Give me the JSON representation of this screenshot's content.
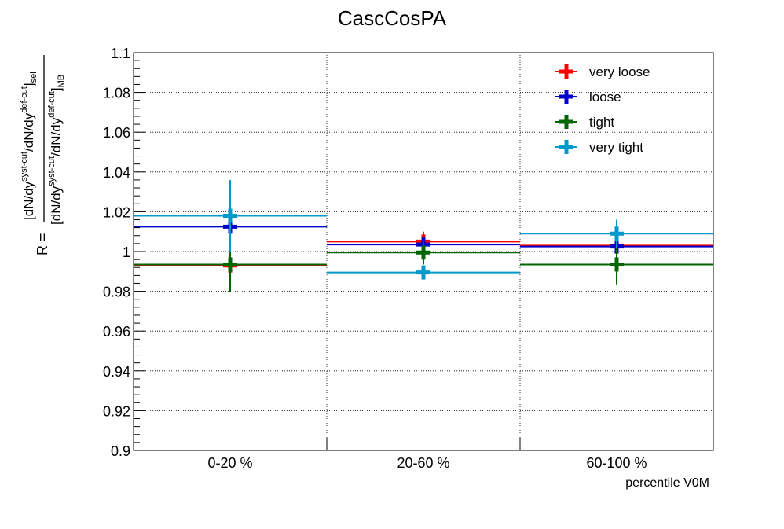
{
  "chart_data": {
    "type": "scatter",
    "title": "CascCosPA",
    "xlabel": "percentile V0M",
    "ylabel": "R = [dN/dy^{syst-cut}/dN/dy^{def-cut}]_{sel} / [dN/dy^{syst-cut}/dN/dy^{def-cut}]_{MB}",
    "ylabel_parts": {
      "r_eq": "R =",
      "base1": "dN/dy",
      "sup": "syst-cut",
      "slash": "/dN/dy",
      "sup2": "def-cut",
      "sub_num": "sel",
      "sub_den": "MB"
    },
    "categories": [
      "0-20 %",
      "20-60 %",
      "60-100 %"
    ],
    "ylim": [
      0.9,
      1.1
    ],
    "yticks": [
      "0.9",
      "0.92",
      "0.94",
      "0.96",
      "0.98",
      "1",
      "1.02",
      "1.04",
      "1.06",
      "1.08",
      "1.1"
    ],
    "grid": true,
    "legend_position": "top-right",
    "series": [
      {
        "name": "very loose",
        "color": "#ff0000",
        "values": [
          0.993,
          1.005,
          1.003
        ],
        "errors": [
          0.0015,
          0.005,
          0.0015
        ]
      },
      {
        "name": "loose",
        "color": "#0000cc",
        "values": [
          1.0125,
          1.0035,
          1.0025
        ],
        "errors": [
          0.002,
          0.003,
          0.002
        ]
      },
      {
        "name": "tight",
        "color": "#006600",
        "values": [
          0.9935,
          0.9995,
          0.9935
        ],
        "errors": [
          0.014,
          0.006,
          0.01
        ]
      },
      {
        "name": "very tight",
        "color": "#0099cc",
        "values": [
          1.018,
          0.9895,
          1.009
        ],
        "errors": [
          0.018,
          0.0035,
          0.007
        ]
      }
    ]
  }
}
